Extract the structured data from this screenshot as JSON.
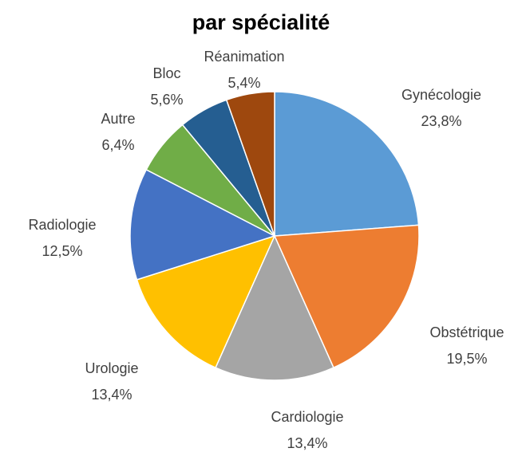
{
  "chart_data": {
    "type": "pie",
    "title": "par spécialité",
    "categories": [
      "Gynécologie",
      "Obstétrique",
      "Cardiologie",
      "Urologie",
      "Radiologie",
      "Autre",
      "Bloc",
      "Réanimation"
    ],
    "values": [
      23.8,
      19.5,
      13.4,
      13.4,
      12.5,
      6.4,
      5.6,
      5.4
    ],
    "value_labels": [
      "23,8%",
      "19,5%",
      "13,4%",
      "13,4%",
      "12,5%",
      "6,4%",
      "5,6%",
      "5,4%"
    ],
    "colors": [
      "#5b9bd5",
      "#ed7d31",
      "#a5a5a5",
      "#ffc000",
      "#4472c4",
      "#70ad47",
      "#255e91",
      "#9e480e"
    ]
  }
}
